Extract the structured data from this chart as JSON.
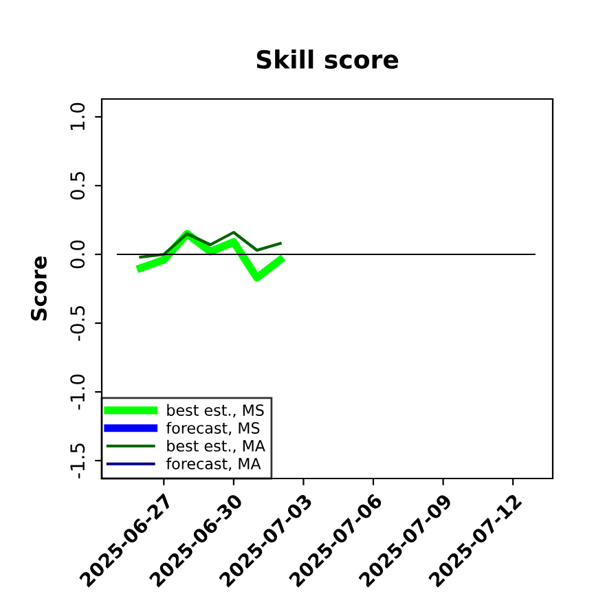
{
  "chart_data": {
    "type": "line",
    "title": "Skill score",
    "ylabel": "Score",
    "x": [
      "2025-06-26",
      "2025-06-27",
      "2025-06-28",
      "2025-06-29",
      "2025-06-30",
      "2025-07-01",
      "2025-07-02"
    ],
    "series": [
      {
        "name": "best est., MS",
        "color": "#00ff00",
        "values": [
          -0.1,
          -0.04,
          0.15,
          0.02,
          0.09,
          -0.17,
          -0.04
        ]
      },
      {
        "name": "forecast, MS",
        "color": "#0000ff",
        "values": [
          null,
          null,
          null,
          null,
          null,
          null,
          null
        ]
      },
      {
        "name": "best est., MA",
        "color": "#006400",
        "values": [
          -0.02,
          0.0,
          0.15,
          0.07,
          0.16,
          0.03,
          0.08
        ]
      },
      {
        "name": "forecast, MA",
        "color": "#00008b",
        "values": [
          null,
          null,
          null,
          null,
          null,
          null,
          null
        ]
      }
    ],
    "xlim": [
      "2025-06-24T08:00",
      "2025-07-13T17:00"
    ],
    "xticks": [
      "2025-06-27",
      "2025-06-30",
      "2025-07-03",
      "2025-07-06",
      "2025-07-09",
      "2025-07-12"
    ],
    "ylim": [
      -1.63,
      1.13
    ],
    "yticks": [
      -1.5,
      {
        "value": -1,
        "label": "-1.0"
      },
      -0.5,
      {
        "value": 0,
        "label": "0.0"
      },
      0.5,
      {
        "value": 1,
        "label": "1.0"
      }
    ],
    "ref_lines": [
      {
        "axis": "y",
        "value": 0,
        "label": null,
        "color": "#000000"
      }
    ],
    "legend": "bottom left",
    "grid": false
  }
}
